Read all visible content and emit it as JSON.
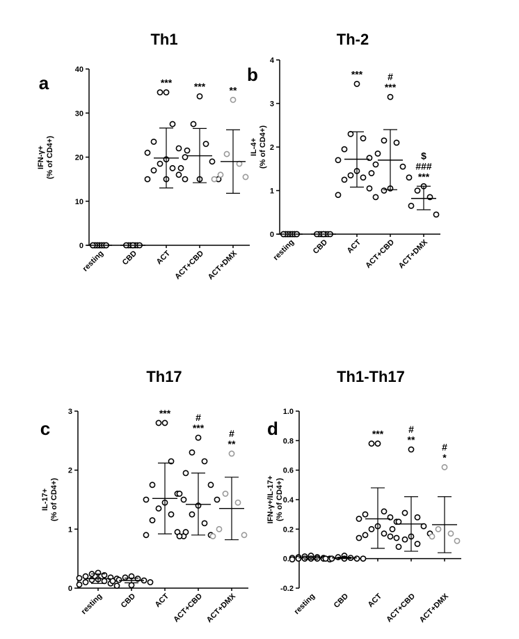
{
  "chart_data": [
    {
      "id": "a",
      "type": "scatter",
      "title": "Th1",
      "letter": "a",
      "ylabel_line1": "IFN-γ+",
      "ylabel_line2": "(% of CD4+)",
      "ylim": [
        0,
        40
      ],
      "yticks": [
        "0",
        "10",
        "20",
        "30",
        "40"
      ],
      "categories": [
        "resting",
        "CBD",
        "ACT",
        "ACT+CBD",
        "ACT+DMX"
      ],
      "groups": [
        {
          "category": "resting",
          "color": "#000000",
          "mean": 0,
          "sd_low": 0,
          "sd_high": 0,
          "points": [
            0,
            0,
            0,
            0,
            0,
            0,
            0,
            0,
            0,
            0,
            0,
            0,
            0,
            0
          ],
          "annotations": []
        },
        {
          "category": "CBD",
          "color": "#000000",
          "mean": 0,
          "sd_low": 0,
          "sd_high": 0,
          "points": [
            0,
            0,
            0,
            0,
            0,
            0,
            0,
            0
          ],
          "annotations": []
        },
        {
          "category": "ACT",
          "color": "#000000",
          "mean": 19.8,
          "sd_low": 13,
          "sd_high": 26.6,
          "points": [
            34.7,
            34.7,
            27.5,
            23.5,
            22,
            21,
            20,
            19.5,
            18.5,
            17.5,
            17,
            16,
            15,
            15,
            15
          ],
          "annotations": [
            "***"
          ]
        },
        {
          "category": "ACT+CBD",
          "color": "#000000",
          "mean": 20.3,
          "sd_low": 14.2,
          "sd_high": 26.5,
          "points": [
            33.8,
            27.5,
            23,
            21.5,
            19,
            17.5,
            15,
            15
          ],
          "annotations": [
            "***"
          ]
        },
        {
          "category": "ACT+DMX",
          "color": "#999999",
          "mean": 19,
          "sd_low": 11.8,
          "sd_high": 26.2,
          "points": [
            33,
            20.7,
            18.5,
            16,
            15.5,
            15
          ],
          "annotations": [
            "**"
          ]
        }
      ]
    },
    {
      "id": "b",
      "type": "scatter",
      "title": "Th-2",
      "letter": "b",
      "ylabel_line1": "IL-4+",
      "ylabel_line2": "(% of CD4+)",
      "ylim": [
        0,
        4
      ],
      "yticks": [
        "0",
        "1",
        "2",
        "3",
        "4"
      ],
      "categories": [
        "resting",
        "CBD",
        "ACT",
        "ACT+CBD",
        "ACT+DMX"
      ],
      "groups": [
        {
          "category": "resting",
          "color": "#000000",
          "mean": 0,
          "sd_low": 0,
          "sd_high": 0,
          "points": [
            0,
            0,
            0,
            0,
            0,
            0,
            0,
            0,
            0,
            0,
            0,
            0,
            0,
            0
          ],
          "annotations": []
        },
        {
          "category": "CBD",
          "color": "#000000",
          "mean": 0,
          "sd_low": 0,
          "sd_high": 0,
          "points": [
            0,
            0,
            0,
            0,
            0,
            0,
            0,
            0
          ],
          "annotations": []
        },
        {
          "category": "ACT",
          "color": "#000000",
          "mean": 1.72,
          "sd_low": 1.08,
          "sd_high": 2.35,
          "points": [
            3.45,
            2.3,
            2.2,
            1.95,
            1.75,
            1.7,
            1.6,
            1.45,
            1.35,
            1.3,
            1.25,
            1.05,
            0.9,
            0.85
          ],
          "annotations": [
            "***"
          ]
        },
        {
          "category": "ACT+CBD",
          "color": "#000000",
          "mean": 1.7,
          "sd_low": 1.02,
          "sd_high": 2.4,
          "points": [
            3.15,
            2.15,
            2.1,
            1.85,
            1.55,
            1.4,
            1.3,
            1.05,
            1.0
          ],
          "annotations": [
            "***",
            "#"
          ]
        },
        {
          "category": "ACT+DMX",
          "color": "#000000",
          "mean": 0.82,
          "sd_low": 0.56,
          "sd_high": 1.1,
          "points": [
            1.1,
            1.0,
            0.85,
            0.65,
            0.45
          ],
          "annotations": [
            "***",
            "###",
            "$"
          ]
        }
      ]
    },
    {
      "id": "c",
      "type": "scatter",
      "title": "Th17",
      "letter": "c",
      "ylabel_line1": "IL-17+",
      "ylabel_line2": "(% of CD4+)",
      "ylim": [
        0,
        3
      ],
      "yticks": [
        "0",
        "1",
        "2",
        "3"
      ],
      "categories": [
        "resting",
        "CBD",
        "ACT",
        "ACT+CBD",
        "ACT+DMX"
      ],
      "groups": [
        {
          "category": "resting",
          "color": "#000000",
          "mean": 0.16,
          "sd_low": 0.08,
          "sd_high": 0.24,
          "points": [
            0.26,
            0.24,
            0.22,
            0.2,
            0.18,
            0.17,
            0.16,
            0.15,
            0.14,
            0.12,
            0.1,
            0.08,
            0.06,
            0.04
          ],
          "annotations": []
        },
        {
          "category": "CBD",
          "color": "#000000",
          "mean": 0.13,
          "sd_low": 0.09,
          "sd_high": 0.17,
          "points": [
            0.2,
            0.18,
            0.16,
            0.14,
            0.13,
            0.12,
            0.1,
            0.05
          ],
          "annotations": []
        },
        {
          "category": "ACT",
          "color": "#000000",
          "mean": 1.52,
          "sd_low": 0.92,
          "sd_high": 2.12,
          "points": [
            2.8,
            2.8,
            2.15,
            1.75,
            1.6,
            1.5,
            1.5,
            1.45,
            1.35,
            1.25,
            1.15,
            0.95,
            0.9,
            0.88
          ],
          "annotations": [
            "***"
          ]
        },
        {
          "category": "ACT+CBD",
          "color": "#000000",
          "mean": 1.42,
          "sd_low": 0.9,
          "sd_high": 1.95,
          "points": [
            2.55,
            2.3,
            2.15,
            1.95,
            1.75,
            1.6,
            1.5,
            1.4,
            1.25,
            1.1,
            0.95,
            0.9,
            0.88
          ],
          "annotations": [
            "***",
            "#"
          ]
        },
        {
          "category": "ACT+DMX",
          "color": "#999999",
          "mean": 1.35,
          "sd_low": 0.82,
          "sd_high": 1.88,
          "points": [
            2.28,
            1.6,
            1.45,
            1.0,
            0.9,
            0.88
          ],
          "annotations": [
            "**",
            "#"
          ]
        }
      ]
    },
    {
      "id": "d",
      "type": "scatter",
      "title": "Th1-Th17",
      "letter": "d",
      "ylabel_line1": "IFN-γ+/IL-17+",
      "ylabel_line2": "(% of CD4+)",
      "ylim": [
        -0.2,
        1.0
      ],
      "yticks": [
        "-0.2",
        "0.0",
        "0.2",
        "0.4",
        "0.6",
        "0.8",
        "1.0"
      ],
      "categories": [
        "resting",
        "CBD",
        "ACT",
        "ACT+CBD",
        "ACT+DMX"
      ],
      "groups": [
        {
          "category": "resting",
          "color": "#000000",
          "mean": 0.005,
          "sd_low": -0.005,
          "sd_high": 0.015,
          "points": [
            0.02,
            0.015,
            0.01,
            0.01,
            0.005,
            0.005,
            0,
            0,
            0,
            0,
            0,
            0,
            -0.005,
            -0.005
          ],
          "annotations": []
        },
        {
          "category": "CBD",
          "color": "#000000",
          "mean": 0.005,
          "sd_low": 0,
          "sd_high": 0.01,
          "points": [
            0.02,
            0.01,
            0.005,
            0,
            0,
            0,
            0,
            0
          ],
          "annotations": []
        },
        {
          "category": "ACT",
          "color": "#000000",
          "mean": 0.27,
          "sd_low": 0.07,
          "sd_high": 0.48,
          "points": [
            0.78,
            0.78,
            0.32,
            0.3,
            0.28,
            0.27,
            0.25,
            0.22,
            0.2,
            0.17,
            0.16,
            0.15,
            0.14,
            0.14
          ],
          "annotations": [
            "***"
          ]
        },
        {
          "category": "ACT+CBD",
          "color": "#000000",
          "mean": 0.235,
          "sd_low": 0.05,
          "sd_high": 0.42,
          "points": [
            0.74,
            0.31,
            0.28,
            0.25,
            0.22,
            0.2,
            0.17,
            0.15,
            0.13,
            0.1,
            0.08
          ],
          "annotations": [
            "**",
            "#"
          ]
        },
        {
          "category": "ACT+DMX",
          "color": "#999999",
          "mean": 0.23,
          "sd_low": 0.04,
          "sd_high": 0.42,
          "points": [
            0.62,
            0.2,
            0.17,
            0.15,
            0.12
          ],
          "annotations": [
            "*",
            "#"
          ]
        }
      ]
    }
  ]
}
